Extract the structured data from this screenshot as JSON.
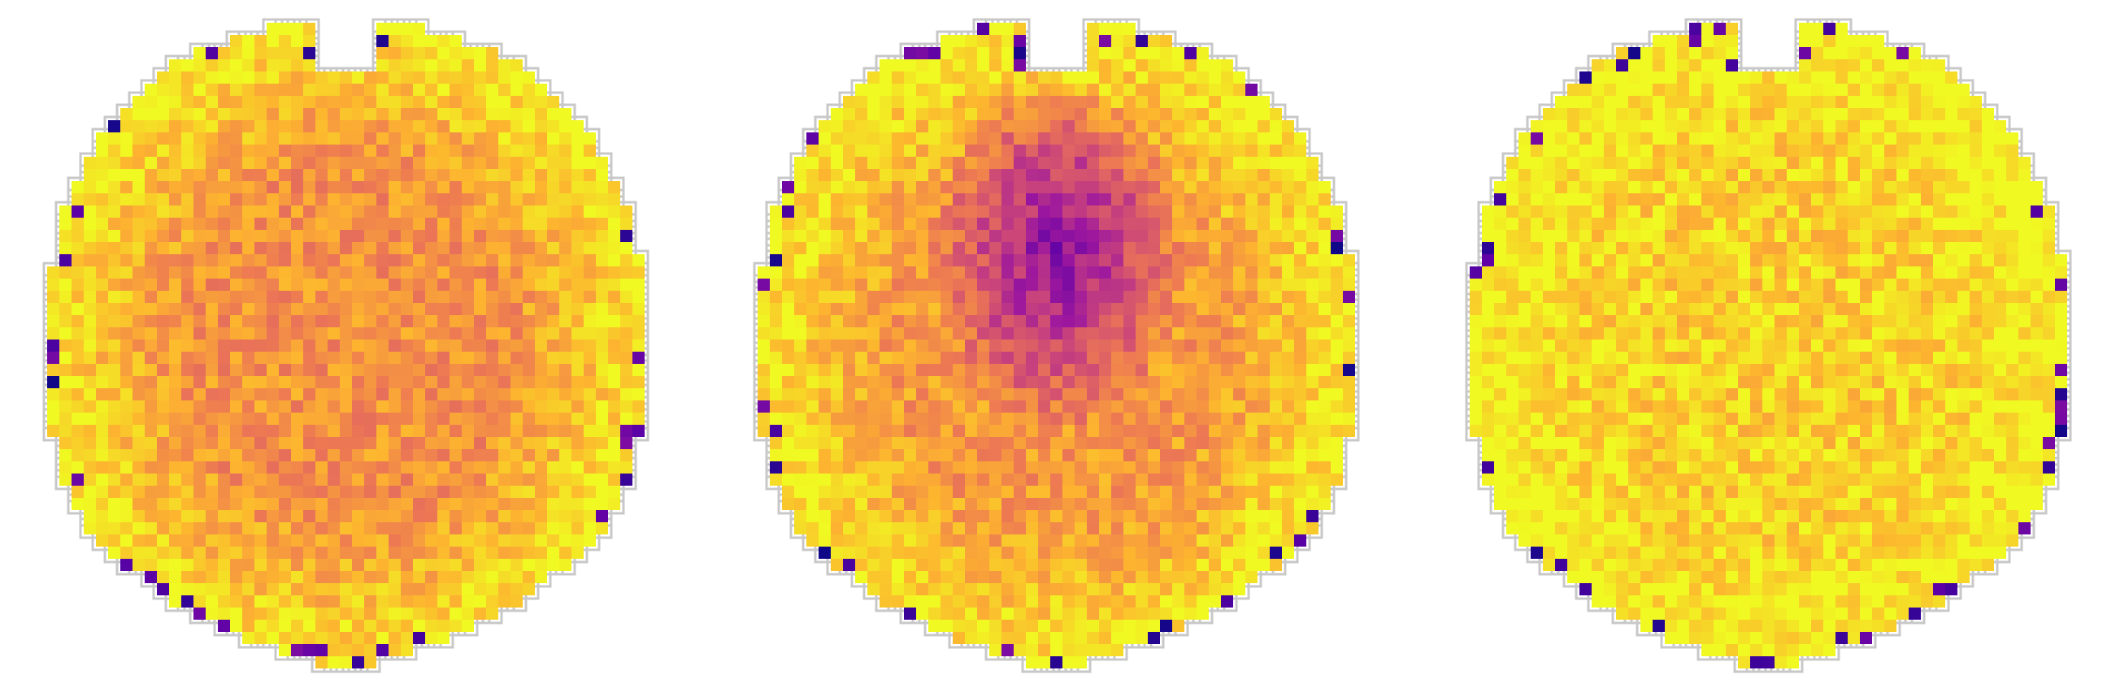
{
  "figure": {
    "panel_count": 3,
    "colormap": [
      "#0d0887",
      "#5c01a6",
      "#9c179e",
      "#cc4778",
      "#ed7953",
      "#fdb42f",
      "#f0f921"
    ],
    "outline_color": "#c8c8c8",
    "background": "#ffffff"
  },
  "panels": [
    {
      "name": "brain-slice-left",
      "base_level": 0.74,
      "focus_level": 0.74,
      "periphery_level": 0.97
    },
    {
      "name": "brain-slice-middle",
      "base_level": 0.76,
      "focus_level": 0.28,
      "periphery_level": 0.97
    },
    {
      "name": "brain-slice-right",
      "base_level": 0.9,
      "focus_level": 0.9,
      "periphery_level": 1.0
    }
  ]
}
